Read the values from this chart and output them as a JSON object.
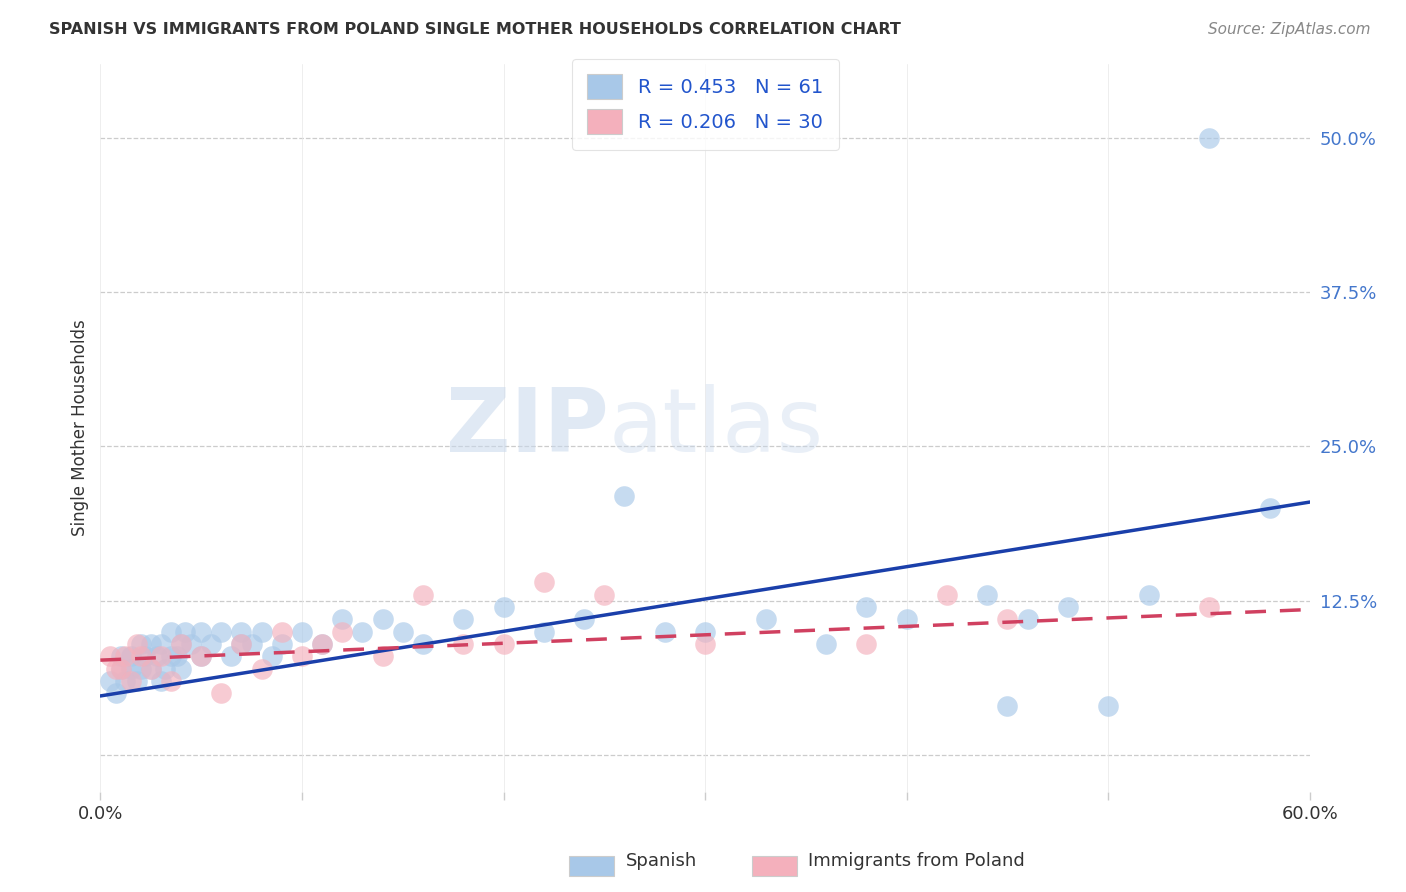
{
  "title": "SPANISH VS IMMIGRANTS FROM POLAND SINGLE MOTHER HOUSEHOLDS CORRELATION CHART",
  "source": "Source: ZipAtlas.com",
  "ylabel": "Single Mother Households",
  "yticks": [
    0.0,
    0.125,
    0.25,
    0.375,
    0.5
  ],
  "ytick_labels": [
    "",
    "12.5%",
    "25.0%",
    "37.5%",
    "50.0%"
  ],
  "xlim": [
    0.0,
    0.6
  ],
  "ylim": [
    -0.03,
    0.56
  ],
  "legend_label1": "Spanish",
  "legend_label2": "Immigrants from Poland",
  "R1": 0.453,
  "N1": 61,
  "R2": 0.206,
  "N2": 30,
  "color_blue": "#a8c8e8",
  "color_pink": "#f4b0bc",
  "line_blue": "#1a3faa",
  "line_pink": "#d04060",
  "title_color": "#333333",
  "source_color": "#888888",
  "watermark_zip": "ZIP",
  "watermark_atlas": "atlas",
  "spanish_x": [
    0.005,
    0.008,
    0.01,
    0.01,
    0.012,
    0.015,
    0.015,
    0.018,
    0.02,
    0.02,
    0.022,
    0.025,
    0.025,
    0.028,
    0.03,
    0.03,
    0.032,
    0.035,
    0.035,
    0.038,
    0.04,
    0.04,
    0.042,
    0.045,
    0.05,
    0.05,
    0.055,
    0.06,
    0.065,
    0.07,
    0.07,
    0.075,
    0.08,
    0.085,
    0.09,
    0.1,
    0.11,
    0.12,
    0.13,
    0.14,
    0.15,
    0.16,
    0.18,
    0.2,
    0.22,
    0.24,
    0.26,
    0.28,
    0.3,
    0.33,
    0.36,
    0.38,
    0.4,
    0.44,
    0.45,
    0.46,
    0.48,
    0.5,
    0.52,
    0.55,
    0.58
  ],
  "spanish_y": [
    0.06,
    0.05,
    0.07,
    0.08,
    0.06,
    0.07,
    0.08,
    0.06,
    0.07,
    0.09,
    0.08,
    0.07,
    0.09,
    0.08,
    0.06,
    0.09,
    0.07,
    0.08,
    0.1,
    0.08,
    0.09,
    0.07,
    0.1,
    0.09,
    0.1,
    0.08,
    0.09,
    0.1,
    0.08,
    0.09,
    0.1,
    0.09,
    0.1,
    0.08,
    0.09,
    0.1,
    0.09,
    0.11,
    0.1,
    0.11,
    0.1,
    0.09,
    0.11,
    0.12,
    0.1,
    0.11,
    0.21,
    0.1,
    0.1,
    0.11,
    0.09,
    0.12,
    0.11,
    0.13,
    0.04,
    0.11,
    0.12,
    0.04,
    0.13,
    0.5,
    0.2
  ],
  "polish_x": [
    0.005,
    0.008,
    0.01,
    0.012,
    0.015,
    0.018,
    0.02,
    0.025,
    0.03,
    0.035,
    0.04,
    0.05,
    0.06,
    0.07,
    0.08,
    0.09,
    0.1,
    0.11,
    0.12,
    0.14,
    0.16,
    0.18,
    0.2,
    0.22,
    0.25,
    0.3,
    0.38,
    0.42,
    0.45,
    0.55
  ],
  "polish_y": [
    0.08,
    0.07,
    0.07,
    0.08,
    0.06,
    0.09,
    0.08,
    0.07,
    0.08,
    0.06,
    0.09,
    0.08,
    0.05,
    0.09,
    0.07,
    0.1,
    0.08,
    0.09,
    0.1,
    0.08,
    0.13,
    0.09,
    0.09,
    0.14,
    0.13,
    0.09,
    0.09,
    0.13,
    0.11,
    0.12
  ],
  "blue_line_x": [
    0.0,
    0.6
  ],
  "blue_line_y": [
    0.048,
    0.205
  ],
  "pink_line_x": [
    0.0,
    0.6
  ],
  "pink_line_y": [
    0.077,
    0.118
  ]
}
